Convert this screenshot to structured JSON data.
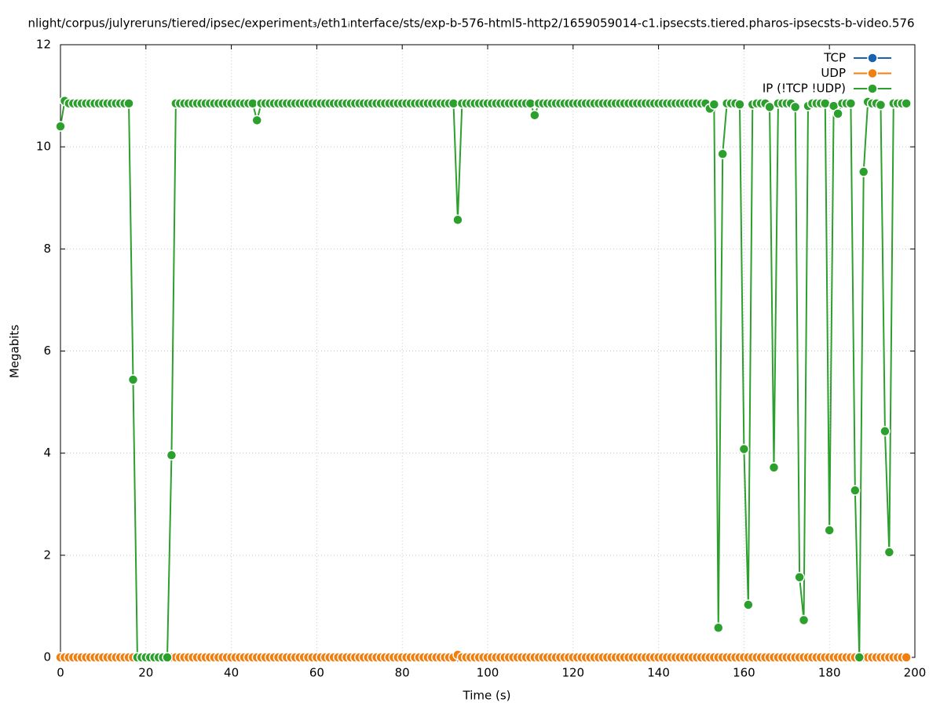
{
  "chart_data": {
    "type": "line",
    "title": "nlight/corpus/julyreruns/tiered/ipsec/experiment₃/eth1ᵢnterface/sts/exp-b-576-html5-http2/1659059014-c1.ipsecsts.tiered.pharos-ipsecsts-b-video.576",
    "x_label": "Time (s)",
    "y_label": "Megabits",
    "xlim": [
      0,
      200
    ],
    "xticks": [
      0,
      20,
      40,
      60,
      80,
      100,
      120,
      140,
      160,
      180,
      200
    ],
    "ylim": [
      0,
      12
    ],
    "yticks": [
      0,
      2,
      4,
      6,
      8,
      10,
      12
    ],
    "grid": true,
    "legend": "top-right",
    "x": [
      0,
      1,
      2,
      3,
      4,
      5,
      6,
      7,
      8,
      9,
      10,
      11,
      12,
      13,
      14,
      15,
      16,
      17,
      18,
      19,
      20,
      21,
      22,
      23,
      24,
      25,
      26,
      27,
      28,
      29,
      30,
      31,
      32,
      33,
      34,
      35,
      36,
      37,
      38,
      39,
      40,
      41,
      42,
      43,
      44,
      45,
      46,
      47,
      48,
      49,
      50,
      51,
      52,
      53,
      54,
      55,
      56,
      57,
      58,
      59,
      60,
      61,
      62,
      63,
      64,
      65,
      66,
      67,
      68,
      69,
      70,
      71,
      72,
      73,
      74,
      75,
      76,
      77,
      78,
      79,
      80,
      81,
      82,
      83,
      84,
      85,
      86,
      87,
      88,
      89,
      90,
      91,
      92,
      93,
      94,
      95,
      96,
      97,
      98,
      99,
      100,
      101,
      102,
      103,
      104,
      105,
      106,
      107,
      108,
      109,
      110,
      111,
      112,
      113,
      114,
      115,
      116,
      117,
      118,
      119,
      120,
      121,
      122,
      123,
      124,
      125,
      126,
      127,
      128,
      129,
      130,
      131,
      132,
      133,
      134,
      135,
      136,
      137,
      138,
      139,
      140,
      141,
      142,
      143,
      144,
      145,
      146,
      147,
      148,
      149,
      150,
      151,
      152,
      153,
      154,
      155,
      156,
      157,
      158,
      159,
      160,
      161,
      162,
      163,
      164,
      165,
      166,
      167,
      168,
      169,
      170,
      171,
      172,
      173,
      174,
      175,
      176,
      177,
      178,
      179,
      180,
      181,
      182,
      183,
      184,
      185,
      186,
      187,
      188,
      189,
      190,
      191,
      192,
      193,
      194,
      195,
      196,
      197,
      198
    ],
    "series": [
      {
        "name": "TCP",
        "color": "#1763ae",
        "values": [
          0,
          0,
          0,
          0,
          0,
          0,
          0,
          0,
          0,
          0,
          0,
          0,
          0,
          0,
          0,
          0,
          0,
          0,
          0,
          0,
          0,
          0,
          0,
          0,
          0,
          0,
          0,
          0,
          0,
          0,
          0,
          0,
          0,
          0,
          0,
          0,
          0,
          0,
          0,
          0,
          0,
          0,
          0,
          0,
          0,
          0,
          0,
          0,
          0,
          0,
          0,
          0,
          0,
          0,
          0,
          0,
          0,
          0,
          0,
          0,
          0,
          0,
          0,
          0,
          0,
          0,
          0,
          0,
          0,
          0,
          0,
          0,
          0,
          0,
          0,
          0,
          0,
          0,
          0,
          0,
          0,
          0,
          0,
          0,
          0,
          0,
          0,
          0,
          0,
          0,
          0,
          0,
          0,
          0,
          0,
          0,
          0,
          0,
          0,
          0,
          0,
          0,
          0,
          0,
          0,
          0,
          0,
          0,
          0,
          0,
          0,
          0,
          0,
          0,
          0,
          0,
          0,
          0,
          0,
          0,
          0,
          0,
          0,
          0,
          0,
          0,
          0,
          0,
          0,
          0,
          0,
          0,
          0,
          0,
          0,
          0,
          0,
          0,
          0,
          0,
          0,
          0,
          0,
          0,
          0,
          0,
          0,
          0,
          0,
          0,
          0,
          0,
          0,
          0,
          0,
          0,
          0,
          0,
          0,
          0,
          0,
          0,
          0,
          0,
          0,
          0,
          0,
          0,
          0,
          0,
          0,
          0,
          0,
          0,
          0,
          0,
          0,
          0,
          0,
          0,
          0,
          0,
          0,
          0,
          0,
          0,
          0,
          0,
          0,
          0,
          0,
          0,
          0,
          0,
          0,
          0,
          0,
          0,
          0
        ]
      },
      {
        "name": "UDP",
        "color": "#f07f10",
        "values": [
          0,
          0,
          0,
          0,
          0,
          0,
          0,
          0,
          0,
          0,
          0,
          0,
          0,
          0,
          0,
          0,
          0,
          0,
          0,
          0,
          0,
          0,
          0,
          0,
          0,
          0,
          0,
          0,
          0,
          0,
          0,
          0,
          0,
          0,
          0,
          0,
          0,
          0,
          0,
          0,
          0,
          0,
          0,
          0,
          0,
          0,
          0,
          0,
          0,
          0,
          0,
          0,
          0,
          0,
          0,
          0,
          0,
          0,
          0,
          0,
          0,
          0,
          0,
          0,
          0,
          0,
          0,
          0,
          0,
          0,
          0,
          0,
          0,
          0,
          0,
          0,
          0,
          0,
          0,
          0,
          0,
          0,
          0,
          0,
          0,
          0,
          0,
          0,
          0,
          0,
          0,
          0,
          0,
          0.05,
          0,
          0,
          0,
          0,
          0,
          0,
          0,
          0,
          0,
          0,
          0,
          0,
          0,
          0,
          0,
          0,
          0,
          0,
          0,
          0,
          0,
          0,
          0,
          0,
          0,
          0,
          0,
          0,
          0,
          0,
          0,
          0,
          0,
          0,
          0,
          0,
          0,
          0,
          0,
          0,
          0,
          0,
          0,
          0,
          0,
          0,
          0,
          0,
          0,
          0,
          0,
          0,
          0,
          0,
          0,
          0,
          0,
          0,
          0,
          0,
          0,
          0,
          0,
          0,
          0,
          0,
          0,
          0,
          0,
          0,
          0,
          0,
          0,
          0,
          0,
          0,
          0,
          0,
          0,
          0,
          0,
          0,
          0,
          0,
          0,
          0,
          0,
          0,
          0,
          0,
          0,
          0,
          0,
          0,
          0,
          0,
          0,
          0,
          0,
          0,
          0,
          0,
          0,
          0,
          0
        ]
      },
      {
        "name": "IP (!TCP  !UDP)",
        "color": "#2ca02c",
        "values": [
          10.4,
          10.9,
          10.85,
          10.85,
          10.85,
          10.85,
          10.85,
          10.85,
          10.85,
          10.85,
          10.85,
          10.85,
          10.85,
          10.85,
          10.85,
          10.85,
          10.85,
          5.44,
          0,
          0,
          0,
          0,
          0,
          0,
          0,
          0,
          3.96,
          10.85,
          10.85,
          10.85,
          10.85,
          10.85,
          10.85,
          10.85,
          10.85,
          10.85,
          10.85,
          10.85,
          10.85,
          10.85,
          10.85,
          10.85,
          10.85,
          10.85,
          10.85,
          10.85,
          10.52,
          10.85,
          10.85,
          10.85,
          10.85,
          10.85,
          10.85,
          10.85,
          10.85,
          10.85,
          10.85,
          10.85,
          10.85,
          10.85,
          10.85,
          10.85,
          10.85,
          10.85,
          10.85,
          10.85,
          10.85,
          10.85,
          10.85,
          10.85,
          10.85,
          10.85,
          10.85,
          10.85,
          10.85,
          10.85,
          10.85,
          10.85,
          10.85,
          10.85,
          10.85,
          10.85,
          10.85,
          10.85,
          10.85,
          10.85,
          10.85,
          10.85,
          10.85,
          10.85,
          10.85,
          10.85,
          10.85,
          8.57,
          10.85,
          10.85,
          10.85,
          10.85,
          10.85,
          10.85,
          10.85,
          10.85,
          10.85,
          10.85,
          10.85,
          10.85,
          10.85,
          10.85,
          10.85,
          10.85,
          10.85,
          10.62,
          10.85,
          10.85,
          10.85,
          10.85,
          10.85,
          10.85,
          10.85,
          10.85,
          10.85,
          10.85,
          10.85,
          10.85,
          10.85,
          10.85,
          10.85,
          10.85,
          10.85,
          10.85,
          10.85,
          10.85,
          10.85,
          10.85,
          10.85,
          10.85,
          10.85,
          10.85,
          10.85,
          10.85,
          10.85,
          10.85,
          10.85,
          10.85,
          10.85,
          10.85,
          10.85,
          10.85,
          10.85,
          10.85,
          10.85,
          10.85,
          10.75,
          10.83,
          0.58,
          9.86,
          10.85,
          10.85,
          10.85,
          10.83,
          4.08,
          1.03,
          10.83,
          10.85,
          10.85,
          10.85,
          10.78,
          3.72,
          10.85,
          10.85,
          10.85,
          10.85,
          10.78,
          1.57,
          0.73,
          10.8,
          10.85,
          10.85,
          10.85,
          10.85,
          2.49,
          10.8,
          10.65,
          10.85,
          10.85,
          10.85,
          3.27,
          0,
          9.51,
          10.88,
          10.85,
          10.85,
          10.82,
          4.43,
          2.06,
          10.85,
          10.85,
          10.85,
          10.85
        ]
      }
    ]
  }
}
